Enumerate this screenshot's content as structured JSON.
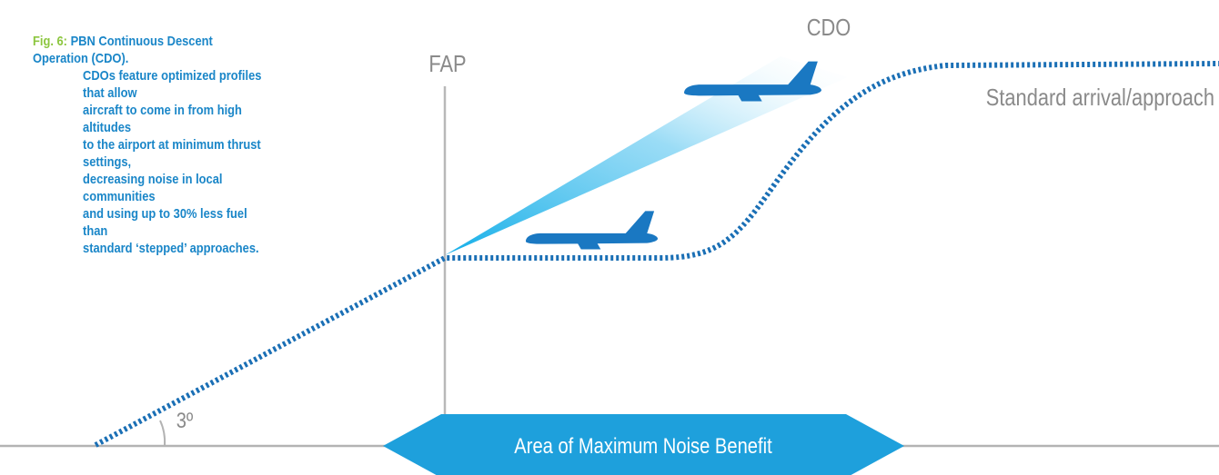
{
  "caption": {
    "fig_label": "Fig. 6:",
    "first_line": "PBN Continuous Descent Operation (CDO).",
    "body": "CDOs feature optimized profiles that allow\naircraft to come in from high altitudes\nto the airport at minimum thrust settings,\ndecreasing noise in local communities\nand using up to 30% less fuel than\nstandard ‘stepped’ approaches."
  },
  "labels": {
    "cdo": "CDO",
    "fap": "FAP",
    "standard": "Standard arrival/approach",
    "angle": "3º",
    "benefit": "Area of Maximum Noise Benefit"
  },
  "colors": {
    "caption_blue": "#1a86c8",
    "fig_green": "#8cc63f",
    "path_blue": "#1a6fb5",
    "plane_blue": "#1a78c2",
    "banner_blue": "#1ea0dc",
    "beam_blue": "#29b6ee",
    "gray_text": "#8a8a8a",
    "ground_gray": "#b3b3b3"
  },
  "icons": [
    "airplane-icon"
  ]
}
